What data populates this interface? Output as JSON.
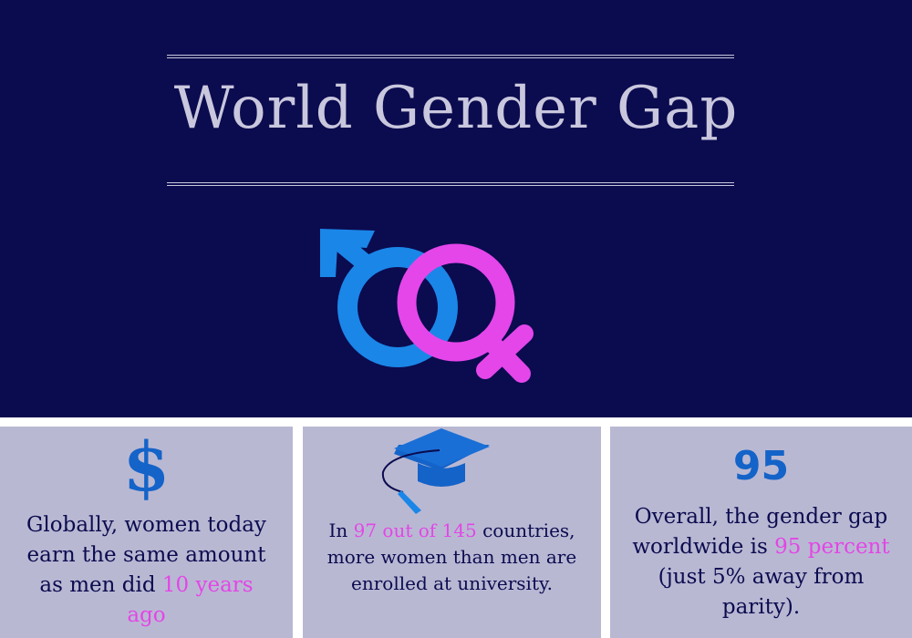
{
  "header": {
    "title": "World Gender Gap"
  },
  "panels": [
    {
      "heading": "$",
      "text": [
        {
          "text": "Globally, women today earn the same amount as men did ",
          "highlight": false
        },
        {
          "text": "10 years ago",
          "highlight": true
        }
      ]
    },
    {
      "text": [
        {
          "text": "In ",
          "highlight": false
        },
        {
          "text": "97 out of 145",
          "highlight": true
        },
        {
          "text": " countries, more women than men are enrolled at university.",
          "highlight": false
        }
      ]
    },
    {
      "heading": "95",
      "text": [
        {
          "text": "Overall, the gender gap worldwide is ",
          "highlight": false
        },
        {
          "text": "95 percent",
          "highlight": true
        },
        {
          "text": " (just 5% away from parity).",
          "highlight": false
        }
      ]
    }
  ]
}
